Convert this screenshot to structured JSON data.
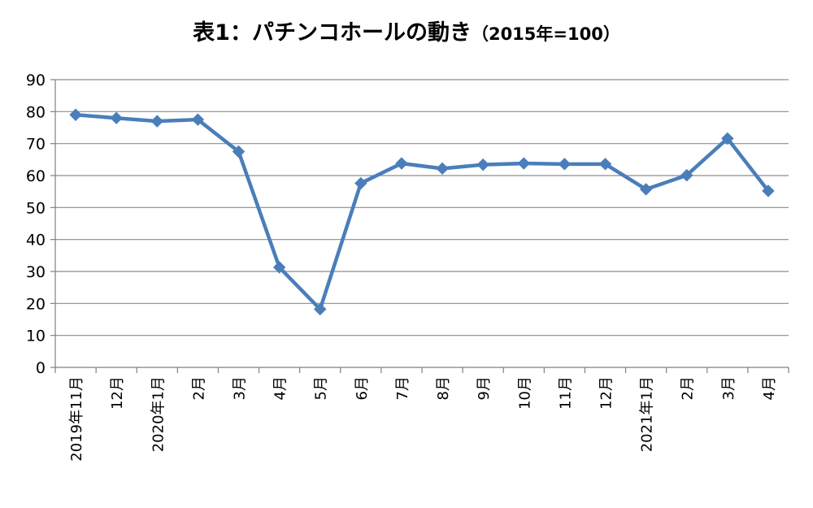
{
  "chart_data": {
    "type": "line",
    "title": "表1：パチンコホールの動き",
    "subtitle": "（2015年=100）",
    "xlabel": "",
    "ylabel": "",
    "categories": [
      "2019年11月",
      "12月",
      "2020年1月",
      "2月",
      "3月",
      "4月",
      "5月",
      "6月",
      "7月",
      "8月",
      "9月",
      "10月",
      "11月",
      "12月",
      "2021年1月",
      "2月",
      "3月",
      "4月"
    ],
    "series": [
      {
        "values": [
          79.0,
          78.0,
          77.0,
          77.5,
          67.5,
          31.3,
          18.2,
          57.6,
          63.8,
          62.2,
          63.4,
          63.8,
          63.6,
          63.6,
          55.7,
          60.1,
          71.6,
          55.2
        ]
      }
    ],
    "ylim": [
      0,
      90
    ],
    "yticks": [
      0,
      10,
      20,
      30,
      40,
      50,
      60,
      70,
      80,
      90
    ],
    "grid": true,
    "legend": "none",
    "colors": {
      "line": "#4a7ebb",
      "grid": "#8c8c8c",
      "axis": "#808080"
    }
  }
}
